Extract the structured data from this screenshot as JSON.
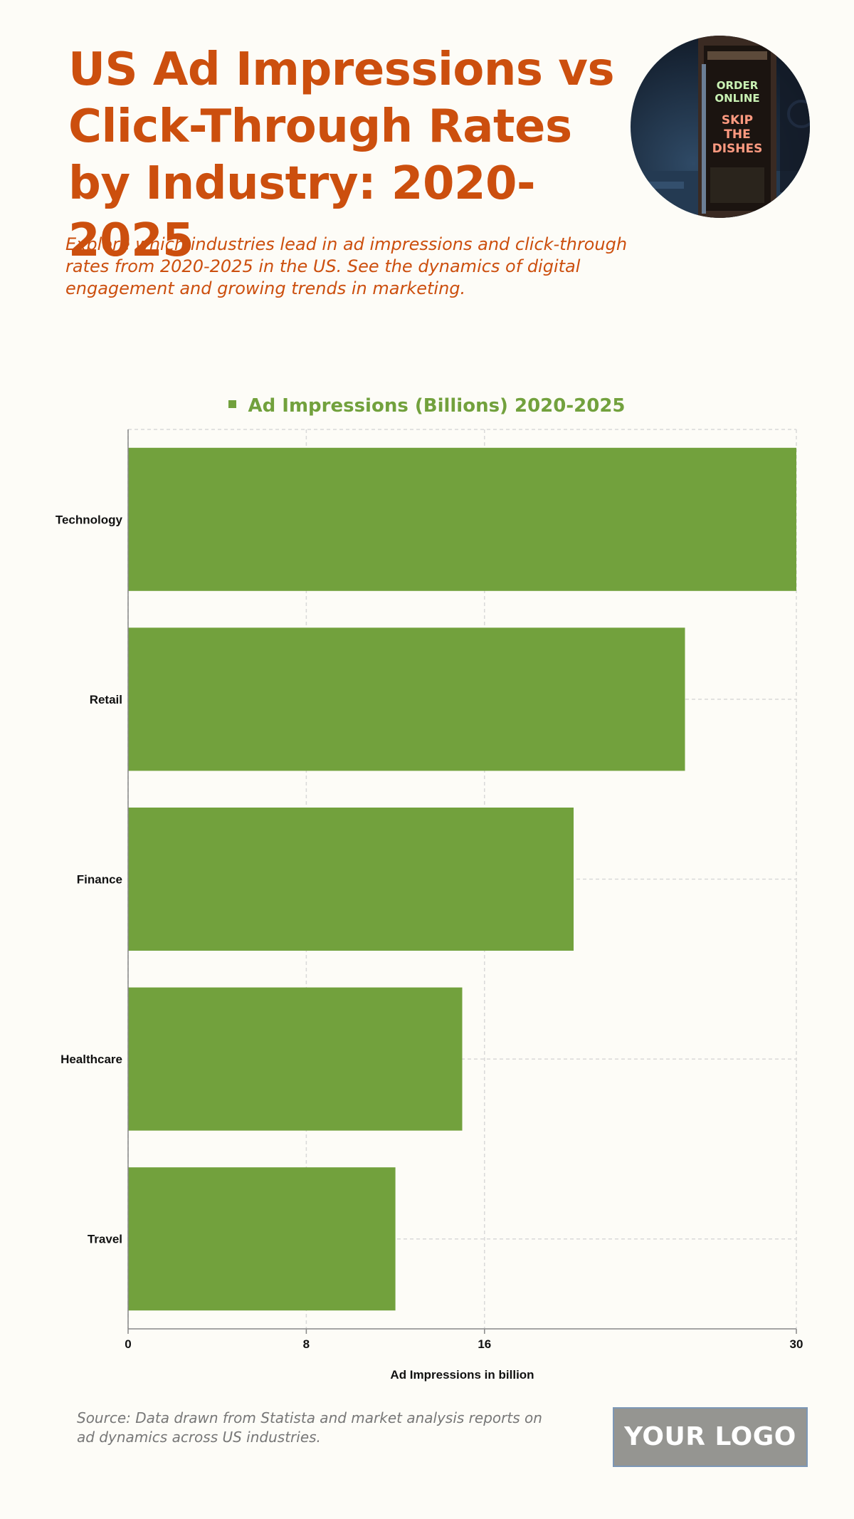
{
  "header": {
    "title": "US Ad Impressions vs Click-Through Rates by Industry: 2020-2025",
    "subtitle": "Explore which industries lead in ad impressions and click-through rates from 2020-2025 in the US. See the dynamics of digital engagement and growing trends in marketing.",
    "photo_sign": [
      "ORDER",
      "ONLINE",
      "SKIP",
      "THE",
      "DISHES"
    ]
  },
  "colors": {
    "title": "#cc4f0e",
    "bar": "#72a13d",
    "grid": "#d9d9d9",
    "axis": "#888888"
  },
  "chart_data": {
    "type": "bar",
    "orientation": "horizontal",
    "categories": [
      "Technology",
      "Retail",
      "Finance",
      "Healthcare",
      "Travel"
    ],
    "series": [
      {
        "name": "Ad Impressions (Billions) 2020-2025",
        "values": [
          30,
          25,
          20,
          15,
          12
        ]
      }
    ],
    "xlabel": "Ad Impressions in billion",
    "ylabel": "",
    "xlim": [
      0,
      30
    ],
    "x_ticks": [
      0,
      8,
      16,
      30
    ],
    "grid": true,
    "legend": "top-center"
  },
  "footer": {
    "source": "Source: Data drawn from Statista and market analysis reports on ad dynamics across US industries.",
    "logo": "YOUR LOGO"
  }
}
